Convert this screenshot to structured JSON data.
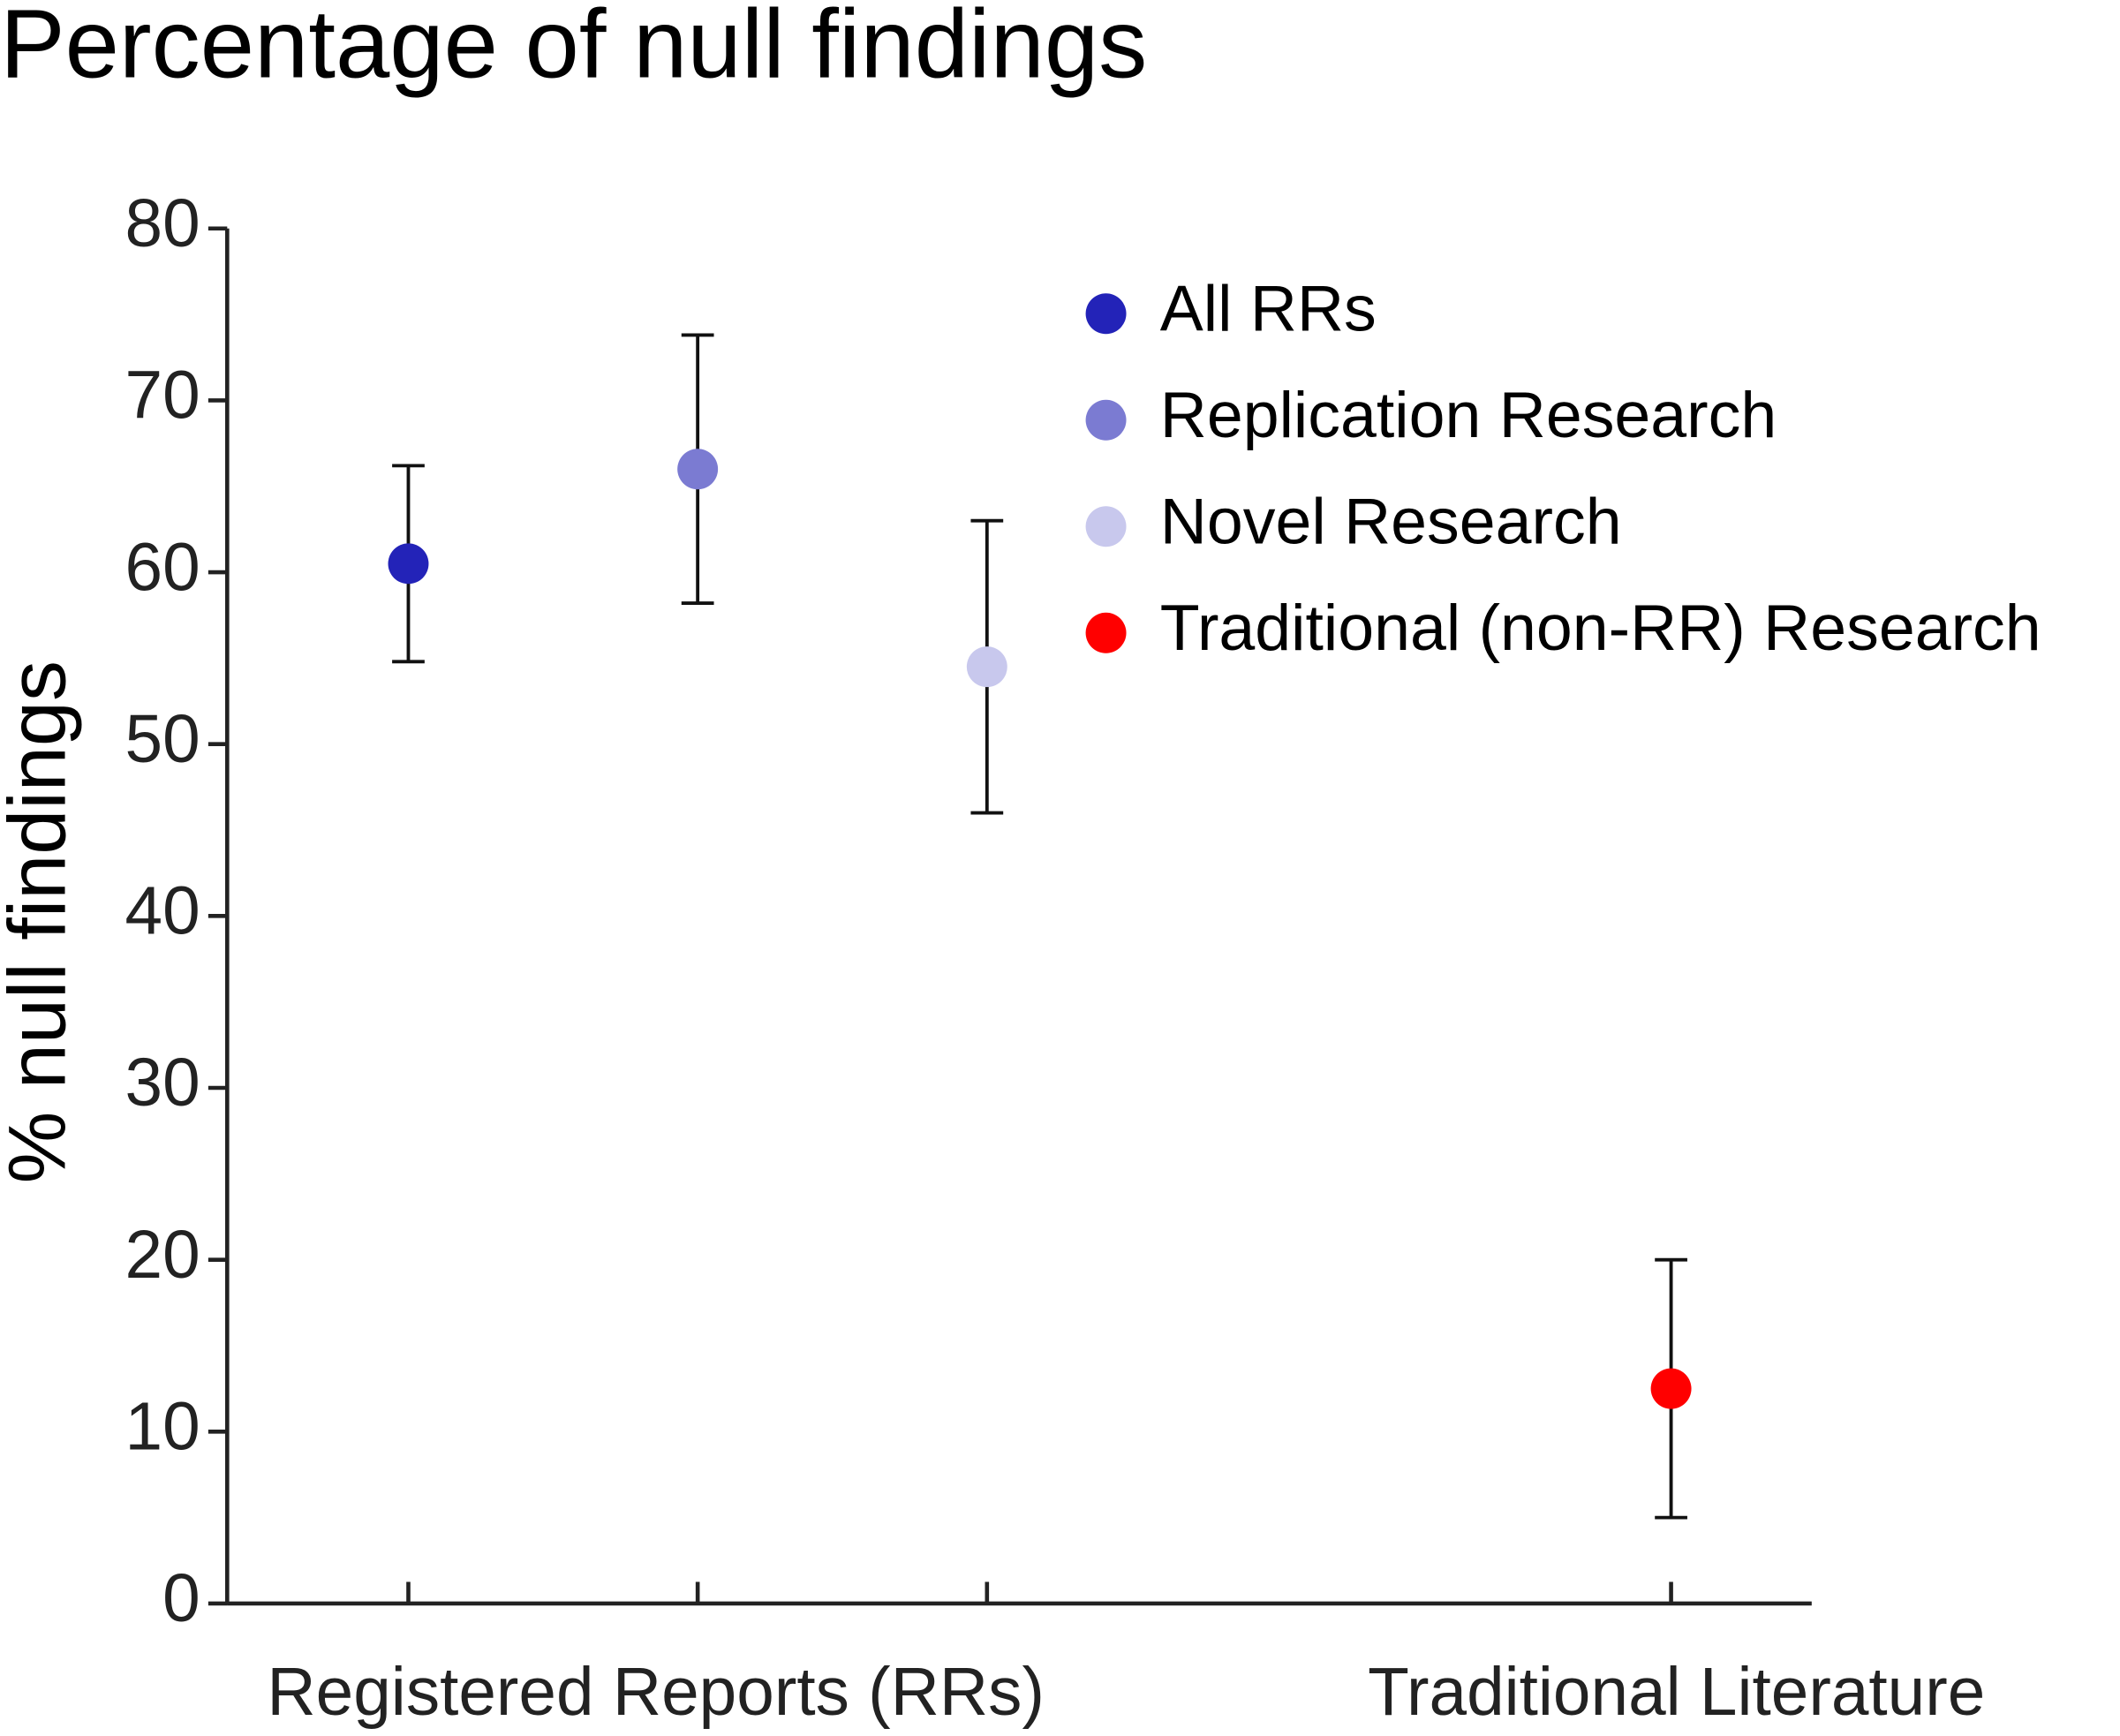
{
  "chart_data": {
    "type": "errorbar",
    "title": "Percentage of null findings",
    "ylabel": "% null findings",
    "ylim": [
      0,
      80
    ],
    "yticks": [
      0,
      10,
      20,
      30,
      40,
      50,
      60,
      70,
      80
    ],
    "groups": [
      "Registered Reports (RRs)",
      "Traditional Literature"
    ],
    "series": [
      {
        "name": "All RRs",
        "color": "#2323b8",
        "value": 60.5,
        "error": 5.7
      },
      {
        "name": "Replication Research",
        "color": "#7b7bd2",
        "value": 66,
        "error": 7.8
      },
      {
        "name": "Novel Research",
        "color": "#c8c8ed",
        "value": 54.5,
        "error": 8.5
      },
      {
        "name": "Traditional (non-RR) Research",
        "color": "#ff0000",
        "value": 12.5,
        "error": 7.5
      }
    ]
  }
}
